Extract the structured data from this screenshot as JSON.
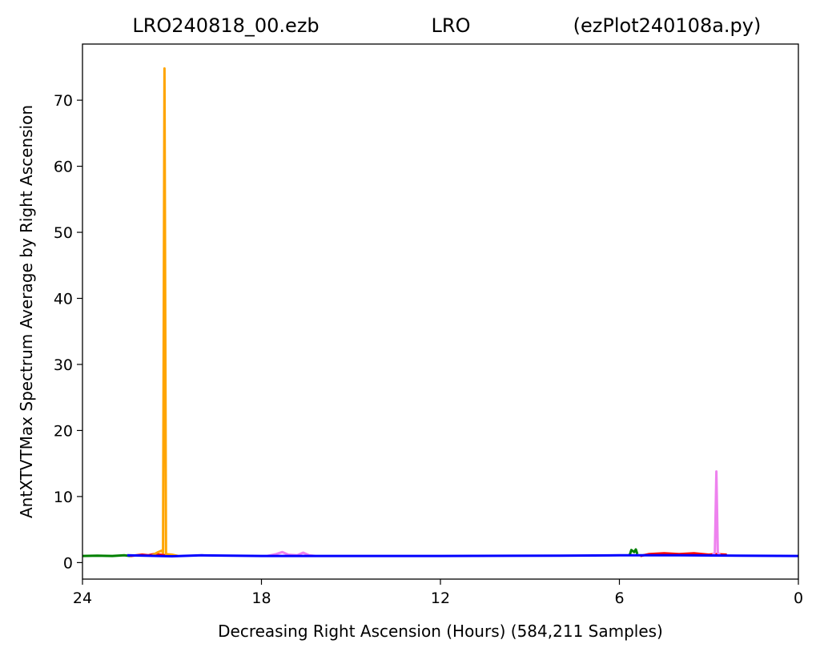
{
  "title": {
    "left": "LRO240818_00.ezb",
    "center": "LRO",
    "right": "(ezPlot240108a.py)"
  },
  "chart_data": {
    "type": "line",
    "xlabel": "Decreasing Right Ascension (Hours) (584,211 Samples)",
    "ylabel": "AntXTVTMax Spectrum Average by Right Ascension",
    "xlim": [
      24,
      0
    ],
    "ylim": [
      -2.5,
      78.5
    ],
    "x_ticks": [
      24,
      18,
      12,
      6,
      0
    ],
    "y_ticks": [
      0,
      10,
      20,
      30,
      40,
      50,
      60,
      70
    ],
    "grid": false,
    "legend": "none",
    "series": [
      {
        "color": "#008000",
        "points": [
          [
            24,
            1.0
          ],
          [
            23.5,
            1.05
          ],
          [
            23.0,
            1.0
          ],
          [
            22.6,
            1.1
          ],
          [
            22.4,
            1.0
          ]
        ]
      },
      {
        "color": "#ff0000",
        "points": [
          [
            22.4,
            1.0
          ],
          [
            22.0,
            1.2
          ],
          [
            21.8,
            1.1
          ],
          [
            21.6,
            1.3
          ],
          [
            21.4,
            1.2
          ],
          [
            21.2,
            1.1
          ],
          [
            21.0,
            1.2
          ]
        ]
      },
      {
        "color": "#ffa500",
        "points": [
          [
            21.7,
            1.0
          ],
          [
            21.5,
            1.5
          ],
          [
            21.35,
            1.8
          ],
          [
            21.3,
            1.5
          ],
          [
            21.25,
            74.8
          ],
          [
            21.2,
            1.3
          ],
          [
            21.0,
            1.2
          ],
          [
            20.8,
            1.0
          ]
        ]
      },
      {
        "color": "#ee82ee",
        "points": [
          [
            17.8,
            1.0
          ],
          [
            17.5,
            1.3
          ],
          [
            17.3,
            1.6
          ],
          [
            17.1,
            1.2
          ],
          [
            16.8,
            1.1
          ],
          [
            16.6,
            1.5
          ],
          [
            16.4,
            1.1
          ],
          [
            16.2,
            1.0
          ]
        ]
      },
      {
        "color": "#008000",
        "points": [
          [
            5.65,
            1.2
          ],
          [
            5.6,
            1.9
          ],
          [
            5.5,
            1.6
          ],
          [
            5.45,
            2.0
          ],
          [
            5.4,
            1.3
          ]
        ]
      },
      {
        "color": "#ff0000",
        "points": [
          [
            5.3,
            1.0
          ],
          [
            5.0,
            1.3
          ],
          [
            4.5,
            1.4
          ],
          [
            4.0,
            1.3
          ],
          [
            3.5,
            1.4
          ],
          [
            3.0,
            1.2
          ],
          [
            2.8,
            1.3
          ],
          [
            2.4,
            1.2
          ]
        ]
      },
      {
        "color": "#ee82ee",
        "points": [
          [
            2.9,
            1.0
          ],
          [
            2.8,
            1.5
          ],
          [
            2.75,
            13.8
          ],
          [
            2.7,
            1.5
          ],
          [
            2.6,
            1.0
          ]
        ]
      },
      {
        "color": "#0000ff",
        "points": [
          [
            22.5,
            1.1
          ],
          [
            21.0,
            0.95
          ],
          [
            20.0,
            1.1
          ],
          [
            18.0,
            1.0
          ],
          [
            16.0,
            1.0
          ],
          [
            12.0,
            1.0
          ],
          [
            8.0,
            1.05
          ],
          [
            6.0,
            1.1
          ],
          [
            4.0,
            1.1
          ],
          [
            2.0,
            1.05
          ],
          [
            0.0,
            1.0
          ]
        ]
      }
    ]
  }
}
